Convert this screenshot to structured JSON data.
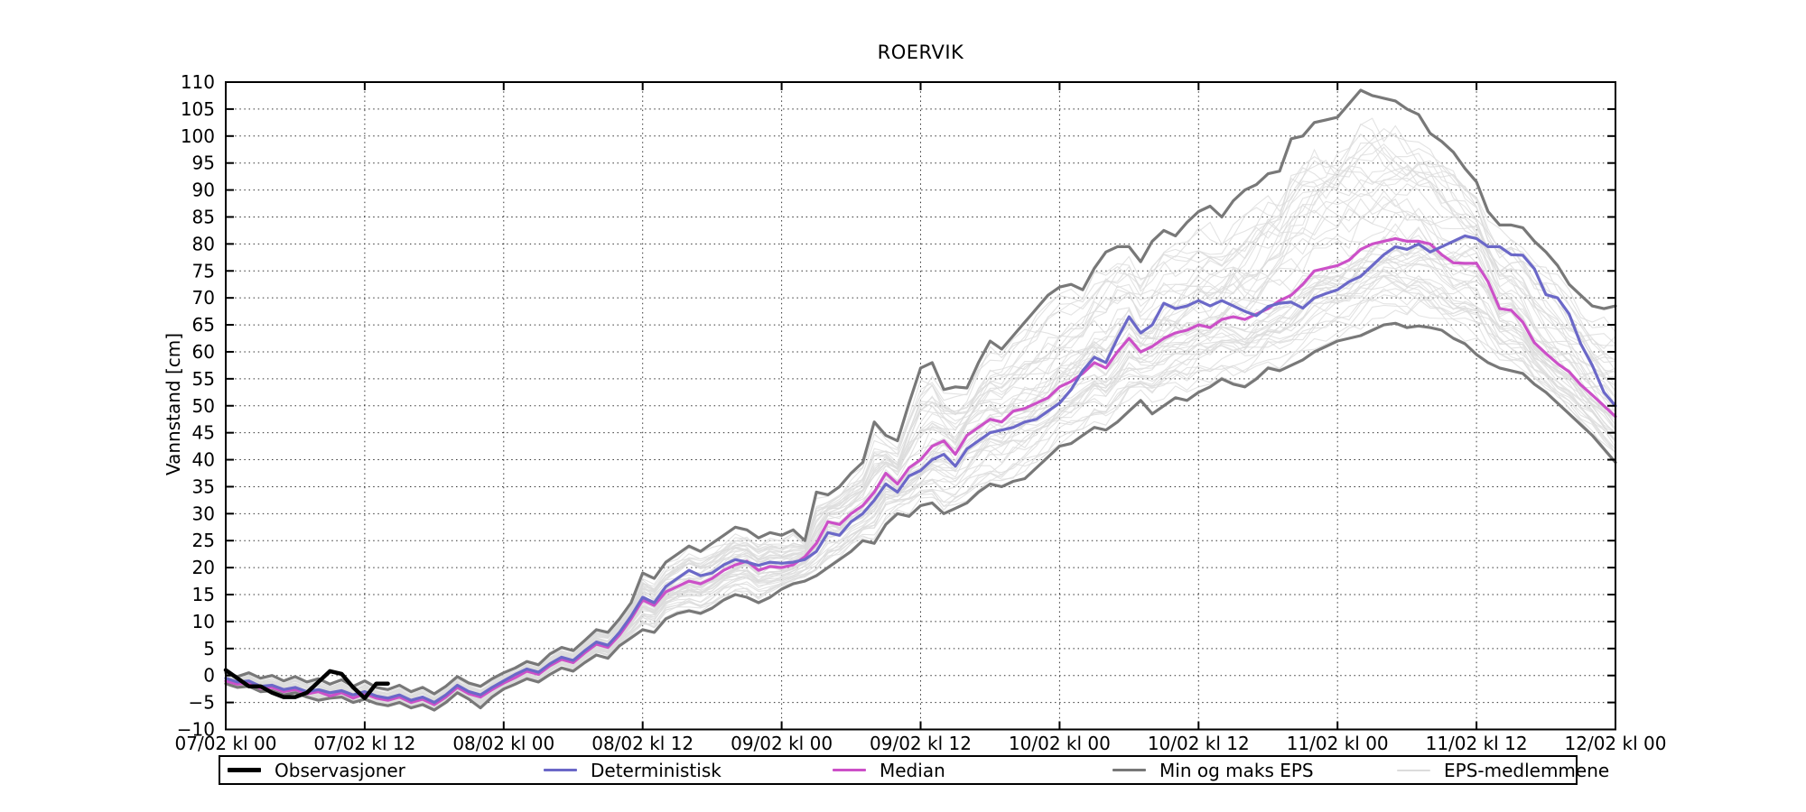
{
  "title": "ROERVIK",
  "ylabel": "Vannstand [cm]",
  "legend": {
    "items": [
      {
        "label": "Observasjoner",
        "color": "#000000",
        "thickness": 5
      },
      {
        "label": "Deterministisk",
        "color": "#6B68C8",
        "thickness": 3
      },
      {
        "label": "Median",
        "color": "#CC50C8",
        "thickness": 3
      },
      {
        "label": "Min og maks EPS",
        "color": "#787878",
        "thickness": 3
      },
      {
        "label": "EPS-medlemmene",
        "color": "#DCDCDC",
        "thickness": 2
      }
    ]
  },
  "chart_data": {
    "type": "line",
    "title": "ROERVIK",
    "xlabel": "",
    "ylabel": "Vannstand [cm]",
    "ylim": [
      -10,
      110
    ],
    "ytick_step": 5,
    "yticks": [
      "−10",
      "−5",
      "0",
      "5",
      "10",
      "15",
      "20",
      "25",
      "30",
      "35",
      "40",
      "45",
      "50",
      "55",
      "60",
      "65",
      "70",
      "75",
      "80",
      "85",
      "90",
      "95",
      "100",
      "105",
      "110"
    ],
    "grid": "dotted",
    "legend_position": "below-axes",
    "x_hours": {
      "start": 0,
      "end": 120,
      "step": 1
    },
    "xticks": [
      {
        "hour": 0,
        "label": "07/02 kl 00"
      },
      {
        "hour": 12,
        "label": "07/02 kl 12"
      },
      {
        "hour": 24,
        "label": "08/02 kl 00"
      },
      {
        "hour": 36,
        "label": "08/02 kl 12"
      },
      {
        "hour": 48,
        "label": "09/02 kl 00"
      },
      {
        "hour": 60,
        "label": "09/02 kl 12"
      },
      {
        "hour": 72,
        "label": "10/02 kl 00"
      },
      {
        "hour": 84,
        "label": "10/02 kl 12"
      },
      {
        "hour": 96,
        "label": "11/02 kl 00"
      },
      {
        "hour": 108,
        "label": "11/02 kl 12"
      },
      {
        "hour": 120,
        "label": "12/02 kl 00"
      }
    ],
    "series": [
      {
        "name": "Observasjoner",
        "color": "#000000",
        "width": 4.5,
        "x": [
          0,
          1,
          2,
          3,
          4,
          5,
          6,
          7,
          8,
          9,
          10,
          11,
          12,
          13,
          14
        ],
        "values": [
          1.0,
          -0.5,
          -2.0,
          -2.0,
          -3.2,
          -4.0,
          -4.0,
          -3.2,
          -1.2,
          0.8,
          0.3,
          -2.2,
          -4.2,
          -1.5,
          -1.5
        ]
      },
      {
        "name": "Deterministisk",
        "color": "#6B68C8",
        "width": 3.2,
        "values": [
          -0.5,
          -1.2,
          -1.0,
          -2.0,
          -1.8,
          -2.6,
          -2.2,
          -3.0,
          -2.6,
          -3.2,
          -2.8,
          -3.6,
          -3.0,
          -3.8,
          -4.2,
          -3.6,
          -4.6,
          -4.0,
          -5.0,
          -3.6,
          -1.8,
          -3.0,
          -3.6,
          -2.2,
          -1.0,
          0.2,
          1.2,
          0.6,
          2.2,
          3.4,
          2.8,
          4.6,
          6.2,
          5.6,
          8.0,
          11.0,
          14.5,
          13.5,
          16.5,
          18.0,
          19.5,
          18.5,
          19.0,
          20.5,
          21.5,
          21.0,
          20.4,
          21.0,
          20.8,
          21.0,
          21.5,
          23.0,
          26.5,
          26.0,
          28.5,
          30.0,
          32.5,
          35.5,
          34.0,
          37.0,
          38.0,
          40.0,
          41.0,
          38.8,
          42.0,
          43.5,
          45.0,
          45.5,
          46.0,
          47.0,
          47.5,
          49.0,
          50.5,
          53.0,
          56.5,
          59.0,
          58.0,
          62.5,
          66.5,
          63.5,
          65.0,
          69.0,
          68.0,
          68.5,
          69.5,
          68.5,
          69.5,
          68.5,
          67.5,
          66.7,
          68.4,
          69.0,
          69.2,
          68.1,
          70.0,
          70.8,
          71.5,
          73.0,
          74.0,
          76.0,
          78.0,
          79.5,
          79.0,
          80.0,
          78.5,
          79.5,
          80.5,
          81.5,
          81.0,
          79.5,
          79.5,
          78.0,
          77.9,
          75.4,
          70.6,
          70.0,
          67.0,
          61.5,
          57.5,
          52.5,
          50.0
        ]
      },
      {
        "name": "Median",
        "color": "#CC50C8",
        "width": 3.2,
        "values": [
          -1.0,
          -1.6,
          -1.4,
          -2.4,
          -2.2,
          -3.0,
          -2.6,
          -3.4,
          -3.0,
          -3.8,
          -3.2,
          -4.2,
          -3.4,
          -4.2,
          -4.6,
          -4.0,
          -5.0,
          -4.4,
          -5.4,
          -4.0,
          -2.2,
          -3.4,
          -4.0,
          -2.6,
          -1.4,
          -0.4,
          0.8,
          0.2,
          1.8,
          3.0,
          2.4,
          4.2,
          5.8,
          5.2,
          7.5,
          10.5,
          14.0,
          13.0,
          15.5,
          16.5,
          17.5,
          17.0,
          18.0,
          19.5,
          20.5,
          21.2,
          19.5,
          20.2,
          20.0,
          20.5,
          22.0,
          24.5,
          28.5,
          28.0,
          30.0,
          31.5,
          34.0,
          37.5,
          35.5,
          38.5,
          40.0,
          42.5,
          43.5,
          41.0,
          44.5,
          46.0,
          47.5,
          47.0,
          49.0,
          49.5,
          50.5,
          51.5,
          53.5,
          54.5,
          56.0,
          58.0,
          57.0,
          60.0,
          62.5,
          60.0,
          61.0,
          62.5,
          63.5,
          64.0,
          65.0,
          64.5,
          66.0,
          66.5,
          66.0,
          67.0,
          68.0,
          69.5,
          70.5,
          72.5,
          75.0,
          75.5,
          76.0,
          77.0,
          79.0,
          80.0,
          80.5,
          81.0,
          80.5,
          80.5,
          80.0,
          78.0,
          76.5,
          76.4,
          76.4,
          73.0,
          68.0,
          67.7,
          65.5,
          61.7,
          59.7,
          57.8,
          56.3,
          53.9,
          52.0,
          50.0,
          48.0
        ]
      },
      {
        "name": "Maks EPS",
        "color": "#787878",
        "width": 3.2,
        "values": [
          0.5,
          -0.2,
          0.5,
          -0.5,
          0.0,
          -1.0,
          -0.2,
          -1.2,
          -0.6,
          -1.6,
          -0.8,
          -2.0,
          -1.0,
          -2.2,
          -2.6,
          -1.8,
          -3.0,
          -2.2,
          -3.4,
          -2.0,
          -0.2,
          -1.4,
          -2.0,
          -0.6,
          0.5,
          1.4,
          2.6,
          2.0,
          4.0,
          5.2,
          4.6,
          6.5,
          8.5,
          8.0,
          10.5,
          13.5,
          19.0,
          18.0,
          21.0,
          22.5,
          24.0,
          23.0,
          24.5,
          26.0,
          27.5,
          27.0,
          25.5,
          26.5,
          26.0,
          27.0,
          25.0,
          34.0,
          33.5,
          35.0,
          37.5,
          39.5,
          47.0,
          44.5,
          43.5,
          50.5,
          57.0,
          58.0,
          53.0,
          53.5,
          53.3,
          58.0,
          62.0,
          60.5,
          63.0,
          65.5,
          68.0,
          70.5,
          72.0,
          72.5,
          71.5,
          75.5,
          78.5,
          79.5,
          79.5,
          76.7,
          80.5,
          82.5,
          81.5,
          84.0,
          86.0,
          87.0,
          85.0,
          88.0,
          90.0,
          91.0,
          93.0,
          93.5,
          99.5,
          100.0,
          102.5,
          103.0,
          103.5,
          106.0,
          108.5,
          107.5,
          107.0,
          106.5,
          105.0,
          104.0,
          100.5,
          99.0,
          97.0,
          94.0,
          91.5,
          86.0,
          83.5,
          83.5,
          83.0,
          80.5,
          78.5,
          76.0,
          72.5,
          70.5,
          68.5,
          68.0,
          68.5
        ]
      },
      {
        "name": "Min EPS",
        "color": "#787878",
        "width": 3.2,
        "values": [
          -1.5,
          -2.2,
          -2.0,
          -3.0,
          -2.8,
          -3.6,
          -3.2,
          -4.0,
          -4.6,
          -4.2,
          -4.0,
          -5.0,
          -4.4,
          -5.2,
          -5.6,
          -5.0,
          -6.0,
          -5.4,
          -6.4,
          -5.0,
          -3.2,
          -4.4,
          -6.0,
          -4.0,
          -2.5,
          -1.6,
          -0.6,
          -1.2,
          0.2,
          1.4,
          0.8,
          2.4,
          3.8,
          3.2,
          5.5,
          7.0,
          8.5,
          8.0,
          10.5,
          11.5,
          12.0,
          11.5,
          12.5,
          14.0,
          15.0,
          14.5,
          13.5,
          14.5,
          16.0,
          17.0,
          17.5,
          18.5,
          20.0,
          21.5,
          23.0,
          25.0,
          24.5,
          28.0,
          30.0,
          29.5,
          31.5,
          32.0,
          30.0,
          31.0,
          32.0,
          34.0,
          35.5,
          35.0,
          36.0,
          36.5,
          38.5,
          40.5,
          42.5,
          43.0,
          44.5,
          46.0,
          45.5,
          47.0,
          49.0,
          51.0,
          48.5,
          50.0,
          51.5,
          51.0,
          52.5,
          53.5,
          55.0,
          54.0,
          53.5,
          55.0,
          57.0,
          56.5,
          57.5,
          58.5,
          60.0,
          61.0,
          62.0,
          62.5,
          63.0,
          64.0,
          65.0,
          65.3,
          64.5,
          64.8,
          64.5,
          64.0,
          62.5,
          61.5,
          59.5,
          58.0,
          57.0,
          56.5,
          56.0,
          54.0,
          52.5,
          50.5,
          48.5,
          46.5,
          44.5,
          42.0,
          39.5
        ]
      }
    ],
    "eps_members": {
      "name": "EPS-medlemmene",
      "color": "#DCDCDC",
      "width": 1.1,
      "count": 50,
      "seed": 11,
      "note": "ensemble member traces rendered between Min EPS and Maks EPS envelope"
    }
  }
}
